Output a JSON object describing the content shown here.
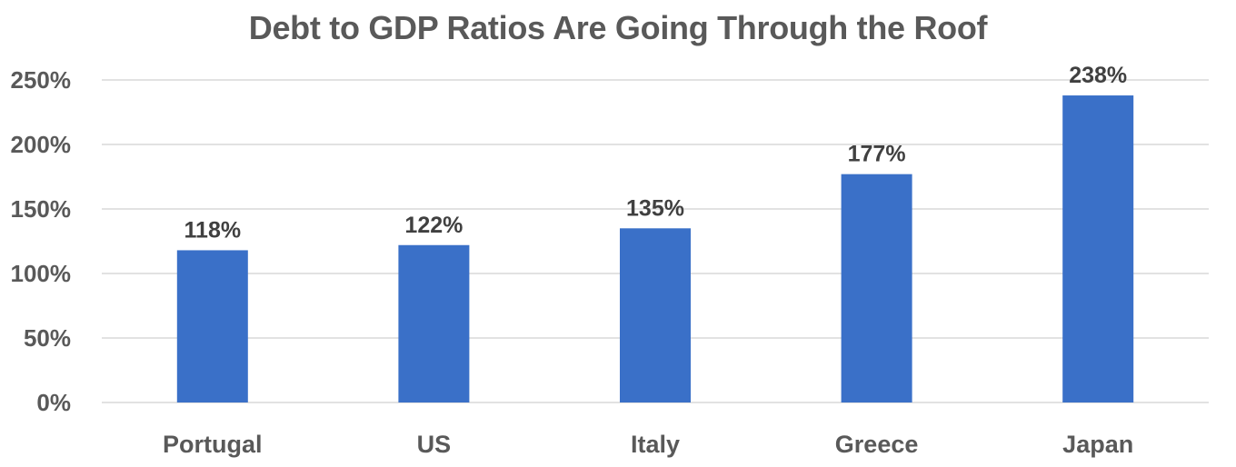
{
  "chart_data": {
    "type": "bar",
    "title": "Debt to GDP Ratios Are Going Through the Roof",
    "categories": [
      "Portugal",
      "US",
      "Italy",
      "Greece",
      "Japan"
    ],
    "values": [
      118,
      122,
      135,
      177,
      238
    ],
    "data_labels": [
      "118%",
      "122%",
      "135%",
      "177%",
      "238%"
    ],
    "xlabel": "",
    "ylabel": "",
    "ylim": [
      0,
      250
    ],
    "yticks": [
      0,
      50,
      100,
      150,
      200,
      250
    ],
    "ytick_labels": [
      "0%",
      "50%",
      "100%",
      "150%",
      "200%",
      "250%"
    ],
    "grid": true,
    "legend": "none",
    "bar_color": "#3a70c8"
  }
}
